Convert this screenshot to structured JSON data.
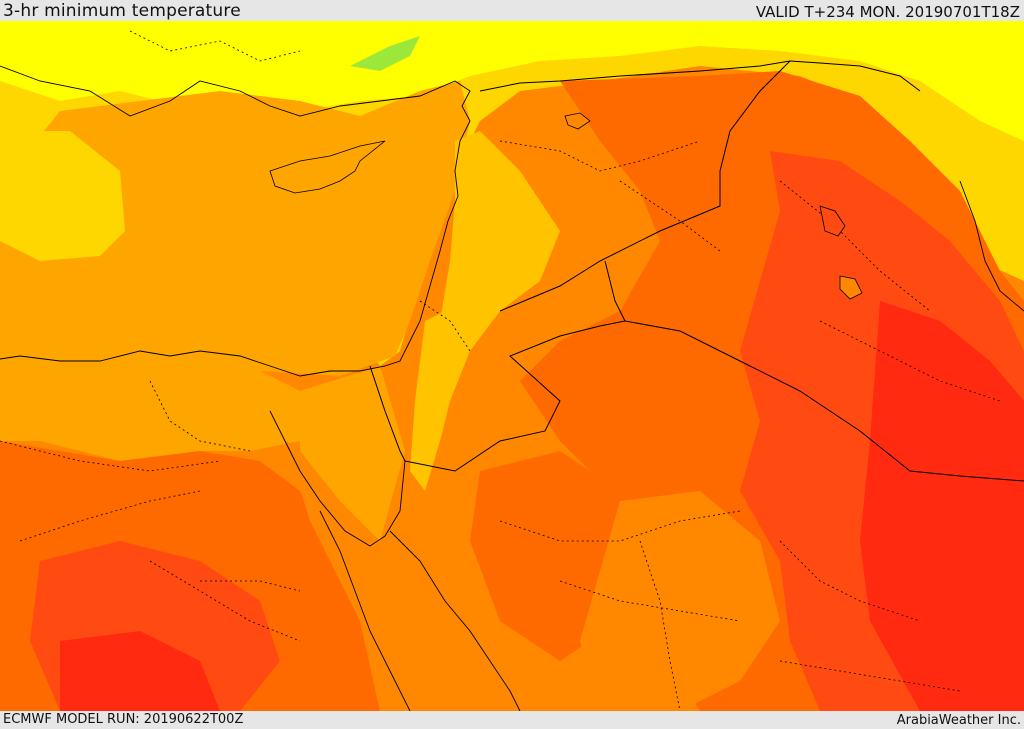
{
  "header": {
    "title": "3-hr minimum temperature",
    "valid": "VALID T+234 MON. 20190701T18Z"
  },
  "footer": {
    "model_run": "ECMWF MODEL RUN: 20190622T00Z",
    "credit": "ArabiaWeather Inc."
  },
  "map": {
    "region": "Eastern Mediterranean and Middle East",
    "colors": {
      "pale_yellow": "#ffff00",
      "yellow": "#ffd700",
      "gold": "#ffc300",
      "light_orange": "#ffa500",
      "orange": "#ff8800",
      "dark_orange": "#ff6a00",
      "red_orange": "#ff4a12",
      "red": "#ff2a10",
      "green_patch": "#9be83a",
      "border": "#000000"
    }
  }
}
